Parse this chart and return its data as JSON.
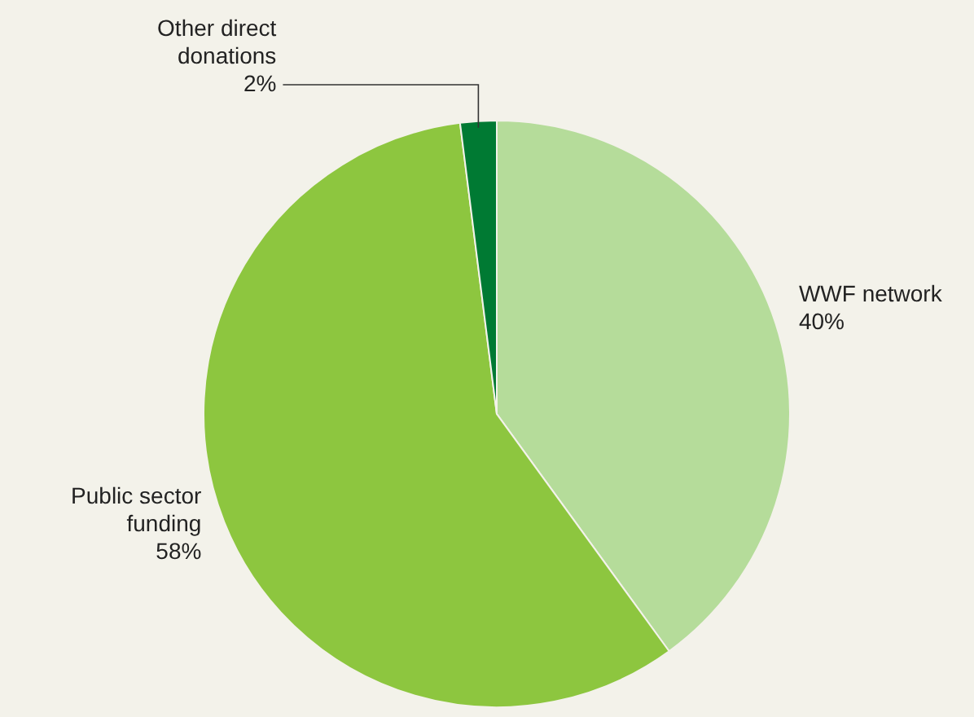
{
  "chart_data": {
    "type": "pie",
    "categories": [
      "WWF network",
      "Public sector funding",
      "Other direct donations"
    ],
    "values": [
      40,
      58,
      2
    ],
    "colors": [
      "#b5dc9a",
      "#8dc63f",
      "#007a33"
    ],
    "value_labels": [
      "40%",
      "58%",
      "2%"
    ]
  }
}
